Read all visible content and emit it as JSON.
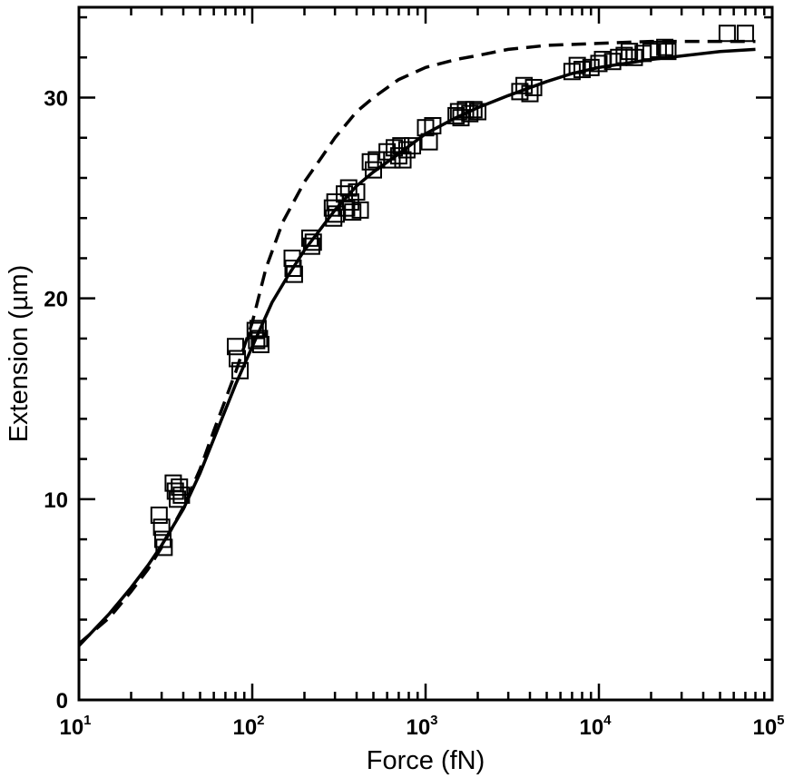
{
  "chart_data": {
    "type": "scatter",
    "title": "",
    "xlabel": "Force (fN)",
    "ylabel": "Extension (µm)",
    "x_scale": "log",
    "xlim": [
      10,
      100000
    ],
    "ylim": [
      0,
      34.5
    ],
    "grid": false,
    "x_tick_labels": [
      {
        "value": 10,
        "base": "10",
        "exp": "1"
      },
      {
        "value": 100,
        "base": "10",
        "exp": "2"
      },
      {
        "value": 1000,
        "base": "10",
        "exp": "3"
      },
      {
        "value": 10000,
        "base": "10",
        "exp": "4"
      },
      {
        "value": 100000,
        "base": "10",
        "exp": "5"
      }
    ],
    "y_tick_labels": [
      {
        "value": 0,
        "label": "0"
      },
      {
        "value": 10,
        "label": "10"
      },
      {
        "value": 20,
        "label": "20"
      },
      {
        "value": 30,
        "label": "30"
      }
    ],
    "series": [
      {
        "style": "square-markers",
        "x": [
          29,
          30,
          30.5,
          31,
          35,
          36,
          37,
          38,
          39,
          80,
          82,
          85,
          104,
          106,
          108,
          110,
          112,
          170,
          172,
          175,
          215,
          220,
          225,
          290,
          295,
          300,
          305,
          340,
          350,
          360,
          370,
          380,
          400,
          420,
          480,
          500,
          520,
          600,
          640,
          660,
          700,
          720,
          740,
          780,
          840,
          1000,
          1050,
          1100,
          1500,
          1550,
          1600,
          1700,
          1800,
          1900,
          2000,
          3500,
          3700,
          4000,
          4200,
          7000,
          7500,
          8000,
          9000,
          10000,
          10500,
          12000,
          13000,
          14000,
          15000,
          16000,
          18000,
          20000,
          22000,
          24000,
          25000,
          55000,
          70000
        ],
        "y": [
          9.2,
          8.6,
          8.0,
          7.6,
          10.8,
          10.4,
          10.0,
          10.6,
          10.2,
          17.6,
          17.0,
          16.4,
          18.4,
          17.9,
          18.5,
          18.0,
          17.7,
          22.0,
          21.5,
          21.2,
          23.0,
          22.6,
          22.8,
          24.5,
          24.0,
          24.8,
          24.2,
          25.2,
          24.5,
          25.5,
          24.8,
          24.3,
          25.3,
          24.4,
          26.8,
          26.4,
          26.9,
          27.3,
          26.9,
          27.5,
          27.1,
          27.6,
          26.9,
          27.4,
          27.6,
          28.5,
          27.8,
          28.6,
          29.1,
          29.3,
          29.0,
          29.4,
          29.2,
          29.4,
          29.3,
          30.3,
          30.6,
          30.2,
          30.5,
          31.3,
          31.6,
          31.4,
          31.5,
          31.7,
          31.9,
          31.8,
          32.0,
          32.1,
          32.3,
          32.0,
          32.2,
          32.3,
          32.4,
          32.5,
          32.3,
          33.2,
          33.2
        ]
      },
      {
        "style": "solid-line",
        "x": [
          10,
          15,
          20,
          25,
          30,
          40,
          50,
          60,
          80,
          100,
          130,
          160,
          200,
          250,
          300,
          400,
          500,
          700,
          1000,
          1500,
          2000,
          3000,
          5000,
          7000,
          10000,
          20000,
          50000,
          80000
        ],
        "y": [
          2.7,
          4.3,
          5.6,
          6.7,
          7.7,
          9.5,
          11.3,
          13.0,
          15.7,
          17.6,
          19.8,
          21.1,
          22.4,
          23.5,
          24.4,
          25.6,
          26.3,
          27.2,
          28.2,
          29.0,
          29.5,
          30.1,
          30.8,
          31.2,
          31.5,
          31.9,
          32.3,
          32.4
        ]
      },
      {
        "style": "dashed-line",
        "x": [
          10,
          15,
          20,
          25,
          30,
          40,
          50,
          60,
          80,
          100,
          120,
          150,
          200,
          250,
          300,
          400,
          500,
          700,
          1000,
          1500,
          2000,
          3000,
          5000,
          10000,
          20000,
          80000
        ],
        "y": [
          2.8,
          4.1,
          5.4,
          6.5,
          7.6,
          9.6,
          11.5,
          13.4,
          16.3,
          18.8,
          21.5,
          23.8,
          25.8,
          27.0,
          28.0,
          29.3,
          30.0,
          30.9,
          31.5,
          31.9,
          32.1,
          32.4,
          32.6,
          32.7,
          32.8,
          32.8
        ]
      }
    ]
  }
}
